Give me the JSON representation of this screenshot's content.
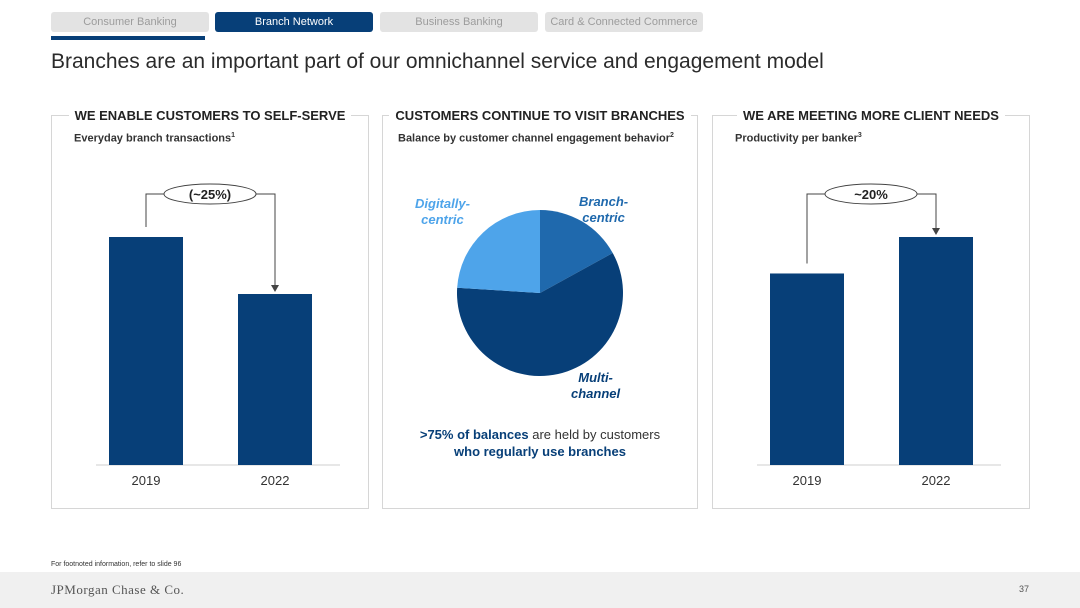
{
  "tabs": [
    {
      "label": "Consumer Banking",
      "active": false
    },
    {
      "label": "Branch Network",
      "active": true
    },
    {
      "label": "Business Banking",
      "active": false
    },
    {
      "label": "Card & Connected Commerce",
      "active": false
    }
  ],
  "title": "Branches are an important part of our omnichannel service and engagement model",
  "panels": {
    "left": {
      "header": "WE ENABLE CUSTOMERS TO SELF-SERVE",
      "subtitle": "Everyday branch transactions",
      "footnote_mark": "1",
      "callout": "(~25%)"
    },
    "middle": {
      "header": "CUSTOMERS CONTINUE TO VISIT BRANCHES",
      "subtitle": "Balance by customer channel engagement behavior",
      "footnote_mark": "2",
      "note_bold": ">75% of balances",
      "note_rest": " are held by customers",
      "note_line2": "who regularly use branches"
    },
    "right": {
      "header": "WE ARE MEETING MORE CLIENT NEEDS",
      "subtitle": "Productivity per banker",
      "footnote_mark": "3",
      "callout": "~20%"
    }
  },
  "chart_data": [
    {
      "type": "bar",
      "title": "Everyday branch transactions",
      "categories": [
        "2019",
        "2022"
      ],
      "values": [
        100,
        75
      ],
      "ylim": [
        0,
        100
      ],
      "annotation": "(~25%)",
      "color": "#073f78"
    },
    {
      "type": "pie",
      "title": "Balance by customer channel engagement behavior",
      "slices": [
        {
          "label": "Branch-centric",
          "label_lines": [
            "Branch-",
            "centric"
          ],
          "value": 17,
          "color": "#1f69ad"
        },
        {
          "label": "Multi-channel",
          "label_lines": [
            "Multi-",
            "channel"
          ],
          "value": 59,
          "color": "#073f78"
        },
        {
          "label": "Digitally-centric",
          "label_lines": [
            "Digitally-",
            "centric"
          ],
          "value": 24,
          "color": "#4ea4ea"
        }
      ]
    },
    {
      "type": "bar",
      "title": "Productivity per banker",
      "categories": [
        "2019",
        "2022"
      ],
      "values": [
        84,
        100
      ],
      "ylim": [
        0,
        100
      ],
      "annotation": "~20%",
      "color": "#073f78"
    }
  ],
  "footnote": "For footnoted information, refer to slide 96",
  "footer": {
    "logo": "JPMorgan Chase & Co.",
    "page": "37"
  }
}
